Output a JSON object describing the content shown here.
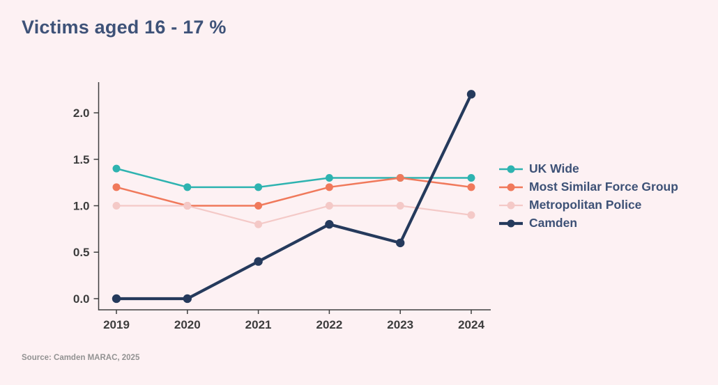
{
  "page": {
    "title": "Victims aged 16 - 17 %",
    "source": "Source: Camden MARAC, 2025",
    "background_color": "#fdf1f3",
    "title_color": "#3e5278",
    "legend_text_color": "#3d5176",
    "axis_color": "#3f3f3f",
    "tick_label_color": "#3d3d3d"
  },
  "chart_data": {
    "type": "line",
    "title": "Victims aged 16 - 17 %",
    "categories": [
      "2019",
      "2020",
      "2021",
      "2022",
      "2023",
      "2024"
    ],
    "series": [
      {
        "name": "UK Wide",
        "color": "#2eb3b0",
        "line_width": 2.5,
        "marker_radius": 5.5,
        "values": [
          1.4,
          1.2,
          1.2,
          1.3,
          1.3,
          1.3
        ]
      },
      {
        "name": "Most Similar Force Group",
        "color": "#f0795b",
        "line_width": 2.5,
        "marker_radius": 5.5,
        "values": [
          1.2,
          1.0,
          1.0,
          1.2,
          1.3,
          1.2
        ]
      },
      {
        "name": "Metropolitan Police",
        "color": "#f4c9c7",
        "line_width": 2.2,
        "marker_radius": 5.5,
        "values": [
          1.0,
          1.0,
          0.8,
          1.0,
          1.0,
          0.9
        ]
      },
      {
        "name": "Camden",
        "color": "#253a5c",
        "line_width": 4.2,
        "marker_radius": 6.2,
        "values": [
          0.0,
          0.0,
          0.4,
          0.8,
          0.6,
          2.2
        ]
      }
    ],
    "yticks": [
      "0.0",
      "0.5",
      "1.0",
      "1.5",
      "2.0"
    ],
    "ylim": [
      -0.12,
      2.33
    ],
    "xlabel": "",
    "ylabel": "",
    "grid": false,
    "legend_position": "right"
  }
}
